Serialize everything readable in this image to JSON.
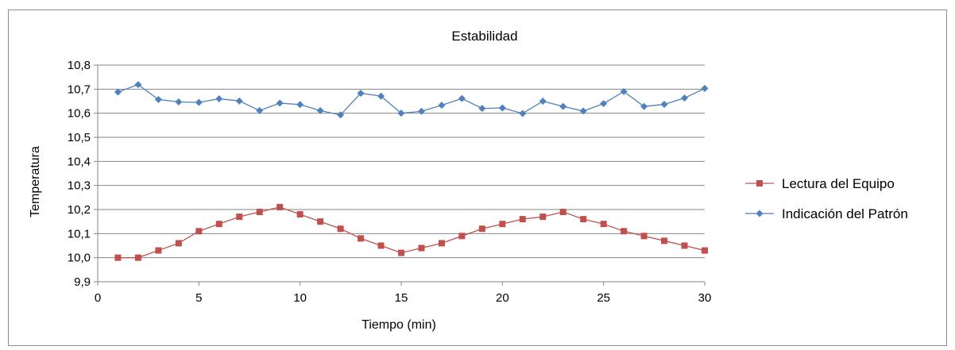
{
  "chart_data": {
    "type": "line",
    "title": "Estabilidad",
    "xlabel": "Tiempo (min)",
    "ylabel": "Temperatura",
    "xlim": [
      0,
      30
    ],
    "ylim": [
      9.9,
      10.8
    ],
    "x_ticks": [
      "0",
      "5",
      "10",
      "15",
      "20",
      "25",
      "30"
    ],
    "y_ticks": [
      "9,9",
      "10,0",
      "10,1",
      "10,2",
      "10,3",
      "10,4",
      "10,5",
      "10,6",
      "10,7",
      "10,8"
    ],
    "grid": "horizontal",
    "legend_position": "right",
    "x": [
      1,
      2,
      3,
      4,
      5,
      6,
      7,
      8,
      9,
      10,
      11,
      12,
      13,
      14,
      15,
      16,
      17,
      18,
      19,
      20,
      21,
      22,
      23,
      24,
      25,
      26,
      27,
      28,
      29,
      30
    ],
    "series": [
      {
        "name": "Lectura del Equipo",
        "color": "#c0504d",
        "marker": "square",
        "values": [
          10.0,
          10.0,
          10.03,
          10.06,
          10.11,
          10.14,
          10.17,
          10.19,
          10.21,
          10.18,
          10.15,
          10.12,
          10.08,
          10.05,
          10.02,
          10.04,
          10.06,
          10.09,
          10.12,
          10.14,
          10.16,
          10.17,
          10.19,
          10.16,
          10.14,
          10.11,
          10.09,
          10.07,
          10.05,
          10.03
        ]
      },
      {
        "name": "Indicación del Patrón",
        "color": "#4f81bd",
        "marker": "diamond",
        "values": [
          10.688,
          10.719,
          10.657,
          10.647,
          10.645,
          10.66,
          10.651,
          10.611,
          10.642,
          10.636,
          10.611,
          10.593,
          10.683,
          10.671,
          10.6,
          10.608,
          10.633,
          10.661,
          10.62,
          10.622,
          10.599,
          10.65,
          10.628,
          10.609,
          10.64,
          10.69,
          10.628,
          10.637,
          10.663,
          10.703
        ]
      }
    ]
  }
}
